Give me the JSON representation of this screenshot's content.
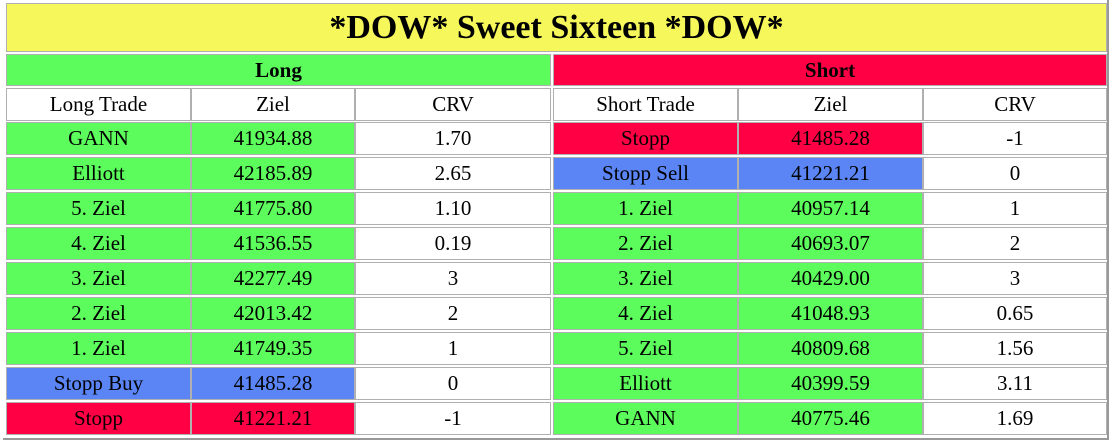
{
  "title": "*DOW* Sweet Sixteen *DOW*",
  "title_color": "#f5f75a",
  "long": {
    "header": "Long",
    "header_color": "#5cfc5c",
    "columns": [
      "Long Trade",
      "Ziel",
      "CRV"
    ],
    "rows": [
      {
        "cells": [
          "GANN",
          "41934.88",
          "1.70"
        ],
        "color": "#5cfc5c"
      },
      {
        "cells": [
          "Elliott",
          "42185.89",
          "2.65"
        ],
        "color": "#5cfc5c"
      },
      {
        "cells": [
          "5. Ziel",
          "41775.80",
          "1.10"
        ],
        "color": "#5cfc5c"
      },
      {
        "cells": [
          "4. Ziel",
          "41536.55",
          "0.19"
        ],
        "color": "#5cfc5c"
      },
      {
        "cells": [
          "3. Ziel",
          "42277.49",
          "3"
        ],
        "color": "#5cfc5c"
      },
      {
        "cells": [
          "2. Ziel",
          "42013.42",
          "2"
        ],
        "color": "#5cfc5c"
      },
      {
        "cells": [
          "1. Ziel",
          "41749.35",
          "1"
        ],
        "color": "#5cfc5c"
      },
      {
        "cells": [
          "Stopp Buy",
          "41485.28",
          "0"
        ],
        "color": "#5b85f5"
      },
      {
        "cells": [
          "Stopp",
          "41221.21",
          "-1"
        ],
        "color": "#ff0044"
      }
    ]
  },
  "short": {
    "header": "Short",
    "header_color": "#ff0044",
    "columns": [
      "Short Trade",
      "Ziel",
      "CRV"
    ],
    "rows": [
      {
        "cells": [
          "Stopp",
          "41485.28",
          "-1"
        ],
        "color": "#ff0044"
      },
      {
        "cells": [
          "Stopp Sell",
          "41221.21",
          "0"
        ],
        "color": "#5b85f5"
      },
      {
        "cells": [
          "1. Ziel",
          "40957.14",
          "1"
        ],
        "color": "#5cfc5c"
      },
      {
        "cells": [
          "2. Ziel",
          "40693.07",
          "2"
        ],
        "color": "#5cfc5c"
      },
      {
        "cells": [
          "3. Ziel",
          "40429.00",
          "3"
        ],
        "color": "#5cfc5c"
      },
      {
        "cells": [
          "4. Ziel",
          "41048.93",
          "0.65"
        ],
        "color": "#5cfc5c"
      },
      {
        "cells": [
          "5. Ziel",
          "40809.68",
          "1.56"
        ],
        "color": "#5cfc5c"
      },
      {
        "cells": [
          "Elliott",
          "40399.59",
          "3.11"
        ],
        "color": "#5cfc5c"
      },
      {
        "cells": [
          "GANN",
          "40775.46",
          "1.69"
        ],
        "color": "#5cfc5c"
      }
    ]
  }
}
